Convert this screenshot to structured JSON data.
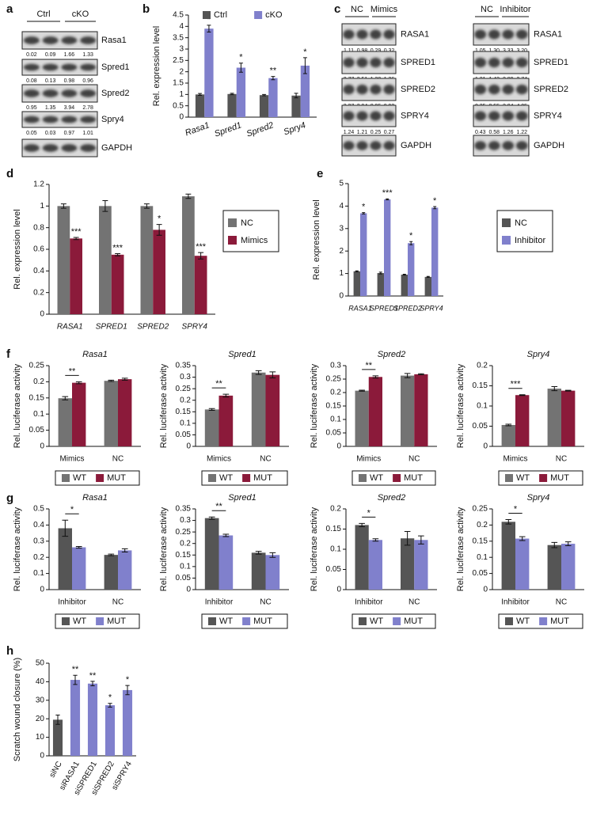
{
  "panel_labels": [
    "a",
    "b",
    "c",
    "d",
    "e",
    "f",
    "g",
    "h"
  ],
  "blots": [
    {
      "groups": [
        "Ctrl",
        "cKO"
      ],
      "rows": [
        {
          "name": "Rasa1",
          "quant": [
            "0.02",
            "0.09",
            "1.66",
            "1.33"
          ]
        },
        {
          "name": "Spred1",
          "quant": [
            "0.08",
            "0.13",
            "0.98",
            "0.96"
          ]
        },
        {
          "name": "Spred2",
          "quant": [
            "0.95",
            "1.35",
            "3.94",
            "2.78"
          ]
        },
        {
          "name": "Spry4",
          "quant": [
            "0.05",
            "0.03",
            "0.97",
            "1.01"
          ]
        },
        {
          "name": "GAPDH"
        }
      ]
    },
    {
      "groups": [
        "NC",
        "Mimics"
      ],
      "rows": [
        {
          "name": "RASA1",
          "quant": [
            "1.11",
            "0.98",
            "0.29",
            "0.32"
          ]
        },
        {
          "name": "SPRED1",
          "quant": [
            "2.77",
            "2.51",
            "1.30",
            "1.36"
          ]
        },
        {
          "name": "SPRED2",
          "quant": [
            "3.27",
            "2.94",
            "0.95",
            "0.92"
          ]
        },
        {
          "name": "SPRY4",
          "quant": [
            "1.24",
            "1.21",
            "0.25",
            "0.27"
          ]
        },
        {
          "name": "GAPDH"
        }
      ]
    },
    {
      "groups": [
        "NC",
        "Inhibitor"
      ],
      "rows": [
        {
          "name": "RASA1",
          "quant": [
            "1.05",
            "1.30",
            "3.33",
            "3.20"
          ]
        },
        {
          "name": "SPRED1",
          "quant": [
            "1.21",
            "1.43",
            "2.89",
            "2.74"
          ]
        },
        {
          "name": "SPRED2",
          "quant": [
            "0.35",
            "0.55",
            "3.04",
            "4.05"
          ]
        },
        {
          "name": "SPRY4",
          "quant": [
            "0.43",
            "0.58",
            "1.26",
            "1.22"
          ]
        },
        {
          "name": "GAPDH"
        }
      ]
    }
  ],
  "chart_data": [
    {
      "type": "bar",
      "y_label": "Rel. expression level",
      "categories": [
        "Rasa1",
        "Spred1",
        "Spred2",
        "Spry4"
      ],
      "series": [
        {
          "name": "Ctrl",
          "color": "#555555",
          "values": [
            1,
            1.02,
            0.97,
            0.95
          ],
          "errors": [
            0.04,
            0.03,
            0.03,
            0.1
          ]
        },
        {
          "name": "cKO",
          "color": "#8080cc",
          "values": [
            3.9,
            2.18,
            1.72,
            2.27
          ],
          "errors": [
            0.15,
            0.2,
            0.07,
            0.35
          ]
        }
      ],
      "significance": [
        "*",
        "*",
        "**",
        "*"
      ],
      "legend": "top",
      "ylim": [
        0,
        4.5
      ],
      "yticks": [
        0,
        0.5,
        1,
        1.5,
        2,
        2.5,
        3,
        3.5,
        4,
        4.5
      ]
    },
    {
      "type": "bar",
      "y_label": "Rel. expression level",
      "categories": [
        "RASA1",
        "SPRED1",
        "SPRED2",
        "SPRY4"
      ],
      "series": [
        {
          "name": "NC",
          "color": "#737373",
          "values": [
            1.0,
            1.0,
            1.0,
            1.09
          ],
          "errors": [
            0.02,
            0.05,
            0.02,
            0.02
          ]
        },
        {
          "name": "Mimics",
          "color": "#8b1a3a",
          "values": [
            0.7,
            0.55,
            0.78,
            0.54
          ],
          "errors": [
            0.01,
            0.01,
            0.05,
            0.03
          ]
        }
      ],
      "significance": [
        "***",
        "***",
        "*",
        "***"
      ],
      "legend": "right",
      "ylim": [
        0,
        1.2
      ],
      "yticks": [
        0,
        0.2,
        0.4,
        0.6,
        0.8,
        1,
        1.2
      ]
    },
    {
      "type": "bar",
      "y_label": "Rel. expression level",
      "categories": [
        "RASA1",
        "SPRED1",
        "SPRED2",
        "SPRY4"
      ],
      "series": [
        {
          "name": "NC",
          "color": "#555555",
          "values": [
            1.1,
            1.02,
            0.95,
            0.85
          ],
          "errors": [
            0.02,
            0.04,
            0.02,
            0.02
          ]
        },
        {
          "name": "Inhibitor",
          "color": "#8080cc",
          "values": [
            3.68,
            4.3,
            2.35,
            3.93
          ],
          "errors": [
            0.03,
            0.02,
            0.07,
            0.05
          ]
        }
      ],
      "significance": [
        "*",
        "***",
        "*",
        "*"
      ],
      "legend": "right",
      "ylim": [
        0,
        5
      ],
      "yticks": [
        0,
        1,
        2,
        3,
        4,
        5
      ]
    },
    {
      "type": "bar",
      "title": "Rasa1",
      "y_label": "Rel. luciferase activity",
      "categories": [
        "Mimics",
        "NC"
      ],
      "series": [
        {
          "name": "WT",
          "color": "#737373",
          "values": [
            0.149,
            0.203
          ],
          "errors": [
            0.005,
            0.002
          ]
        },
        {
          "name": "MUT",
          "color": "#8b1a3a",
          "values": [
            0.197,
            0.208
          ],
          "errors": [
            0.003,
            0.003
          ]
        }
      ],
      "significance": [
        "**",
        null
      ],
      "legend": "bottom",
      "ylim": [
        0,
        0.25
      ],
      "yticks": [
        0,
        0.05,
        0.1,
        0.15,
        0.2,
        0.25
      ]
    },
    {
      "type": "bar",
      "title": "Spred1",
      "y_label": "Rel. luciferase activity",
      "categories": [
        "Mimics",
        "NC"
      ],
      "series": [
        {
          "name": "WT",
          "color": "#737373",
          "values": [
            0.16,
            0.32
          ],
          "errors": [
            0.004,
            0.008
          ]
        },
        {
          "name": "MUT",
          "color": "#8b1a3a",
          "values": [
            0.22,
            0.31
          ],
          "errors": [
            0.006,
            0.013
          ]
        }
      ],
      "significance": [
        "**",
        null
      ],
      "legend": "bottom",
      "ylim": [
        0,
        0.35
      ],
      "yticks": [
        0,
        0.05,
        0.1,
        0.15,
        0.2,
        0.25,
        0.3,
        0.35
      ]
    },
    {
      "type": "bar",
      "title": "Spred2",
      "y_label": "Rel. luciferase activity",
      "categories": [
        "Mimics",
        "NC"
      ],
      "series": [
        {
          "name": "WT",
          "color": "#737373",
          "values": [
            0.207,
            0.263
          ],
          "errors": [
            0.002,
            0.008
          ]
        },
        {
          "name": "MUT",
          "color": "#8b1a3a",
          "values": [
            0.258,
            0.268
          ],
          "errors": [
            0.004,
            0.002
          ]
        }
      ],
      "significance": [
        "**",
        null
      ],
      "legend": "bottom",
      "ylim": [
        0,
        0.3
      ],
      "yticks": [
        0,
        0.05,
        0.1,
        0.15,
        0.2,
        0.25,
        0.3
      ]
    },
    {
      "type": "bar",
      "title": "Spry4",
      "y_label": "Rel. luciferase activity",
      "categories": [
        "Mimics",
        "NC"
      ],
      "series": [
        {
          "name": "WT",
          "color": "#737373",
          "values": [
            0.053,
            0.143
          ],
          "errors": [
            0.002,
            0.005
          ]
        },
        {
          "name": "MUT",
          "color": "#8b1a3a",
          "values": [
            0.127,
            0.138
          ],
          "errors": [
            0.001,
            0.001
          ]
        }
      ],
      "significance": [
        "***",
        null
      ],
      "legend": "bottom",
      "ylim": [
        0,
        0.2
      ],
      "yticks": [
        0,
        0.05,
        0.1,
        0.15,
        0.2
      ]
    },
    {
      "type": "bar",
      "title": "Rasa1",
      "y_label": "Rel. luciferase activity",
      "categories": [
        "Inhibitor",
        "NC"
      ],
      "series": [
        {
          "name": "WT",
          "color": "#555555",
          "values": [
            0.38,
            0.215
          ],
          "errors": [
            0.05,
            0.005
          ]
        },
        {
          "name": "MUT",
          "color": "#8080cc",
          "values": [
            0.262,
            0.243
          ],
          "errors": [
            0.005,
            0.01
          ]
        }
      ],
      "significance": [
        "*",
        null
      ],
      "legend": "bottom",
      "ylim": [
        0,
        0.5
      ],
      "yticks": [
        0,
        0.1,
        0.2,
        0.3,
        0.4,
        0.5
      ]
    },
    {
      "type": "bar",
      "title": "Spred1",
      "y_label": "Rel. luciferase activity",
      "categories": [
        "Inhibitor",
        "NC"
      ],
      "series": [
        {
          "name": "WT",
          "color": "#555555",
          "values": [
            0.31,
            0.16
          ],
          "errors": [
            0.005,
            0.006
          ]
        },
        {
          "name": "MUT",
          "color": "#8080cc",
          "values": [
            0.235,
            0.15
          ],
          "errors": [
            0.005,
            0.01
          ]
        }
      ],
      "significance": [
        "**",
        null
      ],
      "legend": "bottom",
      "ylim": [
        0,
        0.35
      ],
      "yticks": [
        0,
        0.05,
        0.1,
        0.15,
        0.2,
        0.25,
        0.3,
        0.35
      ]
    },
    {
      "type": "bar",
      "title": "Spred2",
      "y_label": "Rel. luciferase activity",
      "categories": [
        "Inhibitor",
        "NC"
      ],
      "series": [
        {
          "name": "WT",
          "color": "#555555",
          "values": [
            0.16,
            0.127
          ],
          "errors": [
            0.004,
            0.017
          ]
        },
        {
          "name": "MUT",
          "color": "#8080cc",
          "values": [
            0.123,
            0.123
          ],
          "errors": [
            0.003,
            0.01
          ]
        }
      ],
      "significance": [
        "*",
        null
      ],
      "legend": "bottom",
      "ylim": [
        0,
        0.2
      ],
      "yticks": [
        0,
        0.05,
        0.1,
        0.15,
        0.2
      ]
    },
    {
      "type": "bar",
      "title": "Spry4",
      "y_label": "Rel. luciferase activity",
      "categories": [
        "Inhibitor",
        "NC"
      ],
      "series": [
        {
          "name": "WT",
          "color": "#555555",
          "values": [
            0.21,
            0.138
          ],
          "errors": [
            0.007,
            0.008
          ]
        },
        {
          "name": "MUT",
          "color": "#8080cc",
          "values": [
            0.158,
            0.142
          ],
          "errors": [
            0.006,
            0.006
          ]
        }
      ],
      "significance": [
        "*",
        null
      ],
      "legend": "bottom",
      "ylim": [
        0,
        0.25
      ],
      "yticks": [
        0,
        0.05,
        0.1,
        0.15,
        0.2,
        0.25
      ]
    },
    {
      "type": "bar",
      "y_label": "Scratch wound closure (%)",
      "categories": [
        "siNC",
        "siRASA1",
        "siSPRED1",
        "siSPRED2",
        "siSPRY4"
      ],
      "values": [
        19.5,
        41,
        39,
        27.3,
        35.5
      ],
      "errors": [
        2.5,
        2.5,
        1.2,
        1,
        2.5
      ],
      "colors": [
        "#555555",
        "#8080cc",
        "#8080cc",
        "#8080cc",
        "#8080cc"
      ],
      "significance": [
        null,
        "**",
        "**",
        "*",
        "*"
      ],
      "ylim": [
        0,
        50
      ],
      "yticks": [
        0,
        10,
        20,
        30,
        40,
        50
      ]
    }
  ]
}
